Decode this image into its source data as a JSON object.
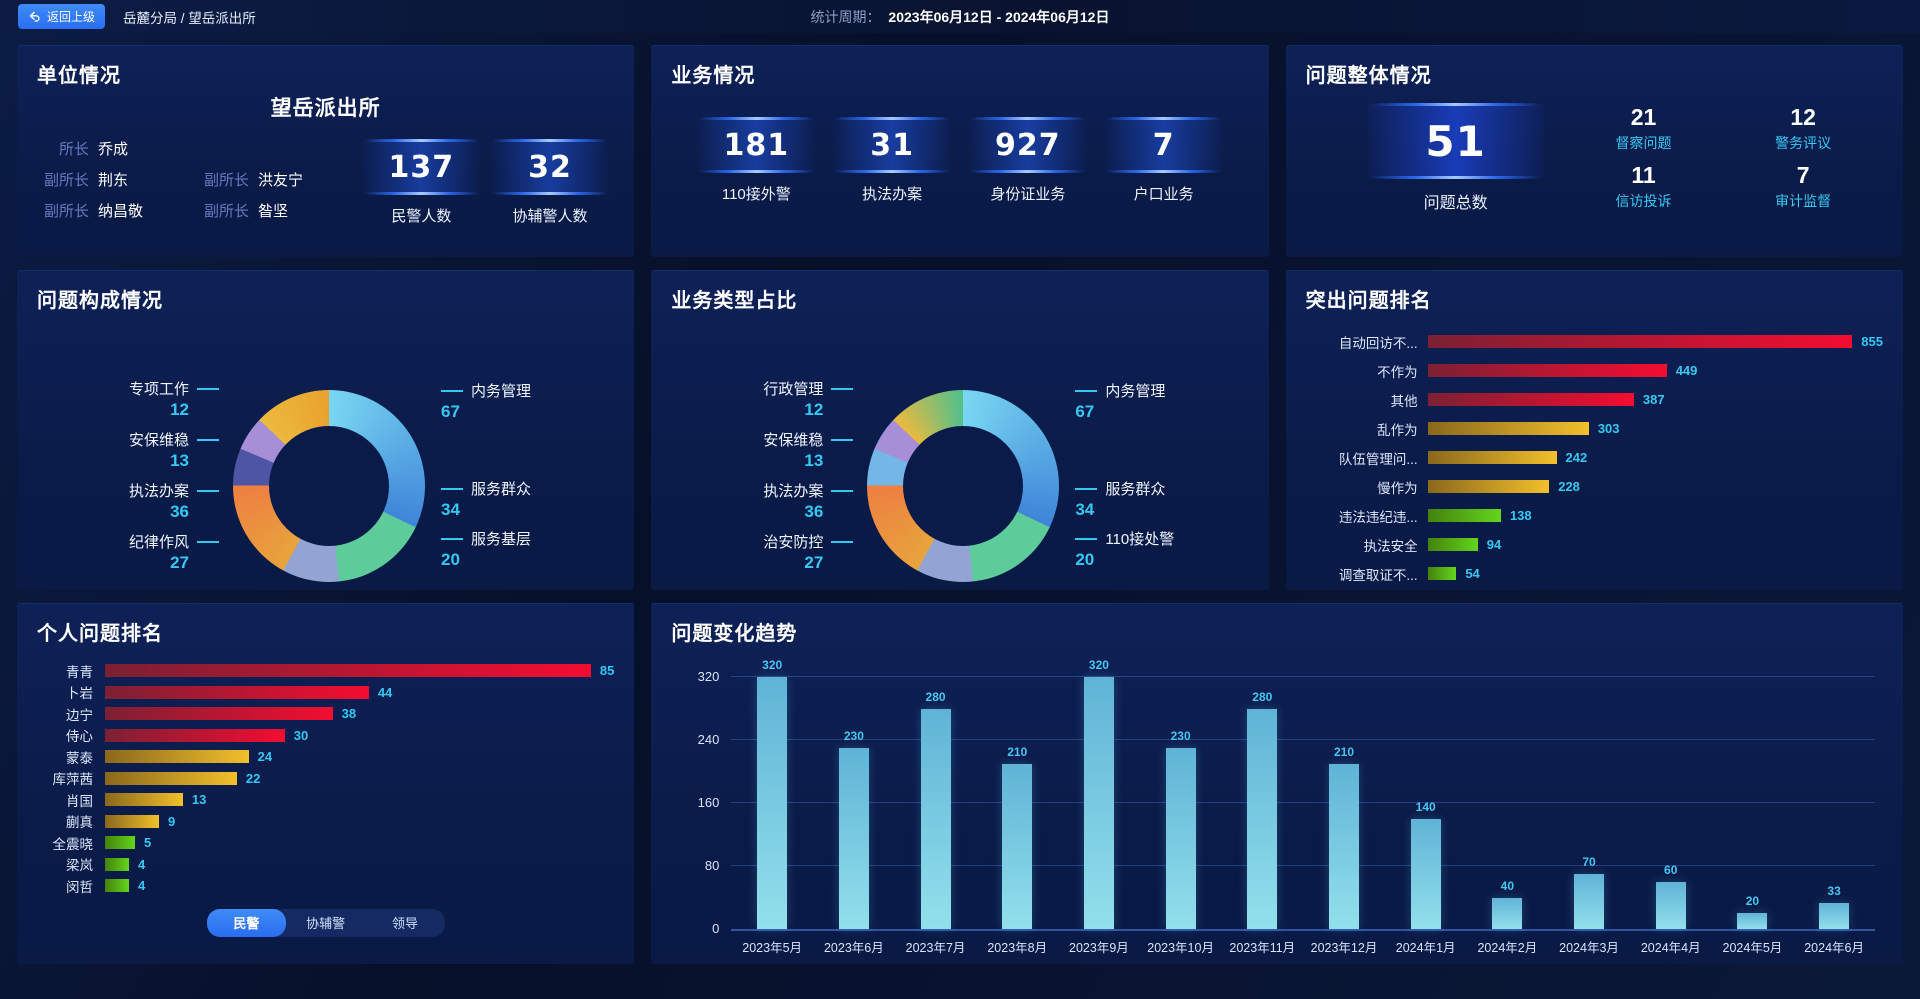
{
  "topbar": {
    "back_label": "返回上级",
    "breadcrumb": "岳麓分局 / 望岳派出所",
    "period_label": "统计周期：",
    "period_value": "2023年06月12日 - 2024年06月12日"
  },
  "palette": {
    "red": [
      "#7c2033",
      "#f30d31"
    ],
    "gold": [
      "#8a681c",
      "#f2c02b"
    ],
    "green": [
      "#44820d",
      "#63d51d"
    ],
    "trend_bar": [
      "#5fb3d6",
      "#93e0ec"
    ],
    "accent_cyan": "#35c9f1",
    "active_tab_blue": "#2e7ef7"
  },
  "unit_panel": {
    "title": "单位情况",
    "station_name": "望岳派出所",
    "roster_rows": [
      [
        {
          "role": "所长",
          "name": "乔成"
        },
        null
      ],
      [
        {
          "role": "副所长",
          "name": "荆东"
        },
        {
          "role": "副所长",
          "name": "洪友宁"
        }
      ],
      [
        {
          "role": "副所长",
          "name": "纳昌敬"
        },
        {
          "role": "副所长",
          "name": "昝坚"
        }
      ]
    ],
    "stats": [
      {
        "value": "137",
        "label": "民警人数"
      },
      {
        "value": "32",
        "label": "协辅警人数"
      }
    ]
  },
  "business_panel": {
    "title": "业务情况",
    "stats": [
      {
        "value": "181",
        "label": "110接外警"
      },
      {
        "value": "31",
        "label": "执法办案"
      },
      {
        "value": "927",
        "label": "身份证业务"
      },
      {
        "value": "7",
        "label": "户口业务"
      }
    ]
  },
  "issue_overview_panel": {
    "title": "问题整体情况",
    "total": {
      "value": "51",
      "label": "问题总数"
    },
    "stats": [
      {
        "value": "21",
        "label": "督察问题"
      },
      {
        "value": "12",
        "label": "警务评议"
      },
      {
        "value": "11",
        "label": "信访投诉"
      },
      {
        "value": "7",
        "label": "审计监督"
      }
    ]
  },
  "chart_data": [
    {
      "id": "issue_composition",
      "type": "pie",
      "title": "问题构成情况",
      "items": [
        {
          "name": "内务管理",
          "value": 67,
          "colors": [
            "#79d7f2",
            "#3f85d8"
          ]
        },
        {
          "name": "服务群众",
          "value": 34,
          "colors": [
            "#5ecb9b"
          ]
        },
        {
          "name": "服务基层",
          "value": 20,
          "colors": [
            "#93a3d4"
          ]
        },
        {
          "name": "执法办案",
          "value": 36,
          "colors": [
            "#e7a43c",
            "#ee7f41"
          ]
        },
        {
          "name": "安保维稳",
          "value": 13,
          "colors": [
            "#4d55a4"
          ]
        },
        {
          "name": "专项工作",
          "value": 12,
          "colors": [
            "#a78fd8"
          ]
        },
        {
          "name": "纪律作风",
          "value": 27,
          "colors": [
            "#ecb93e",
            "#e9a22e"
          ]
        }
      ],
      "left_label_idx": [
        5,
        4,
        3,
        6
      ],
      "right_label_idx": [
        0,
        1,
        2
      ]
    },
    {
      "id": "business_type",
      "type": "pie",
      "title": "业务类型占比",
      "items": [
        {
          "name": "内务管理",
          "value": 67,
          "colors": [
            "#79d7f2",
            "#3f85d8"
          ]
        },
        {
          "name": "服务群众",
          "value": 34,
          "colors": [
            "#5ecb9b"
          ]
        },
        {
          "name": "110接处警",
          "value": 20,
          "colors": [
            "#93a3d4"
          ]
        },
        {
          "name": "执法办案",
          "value": 36,
          "colors": [
            "#e7a43c",
            "#ee7f41"
          ]
        },
        {
          "name": "安保维稳",
          "value": 13,
          "colors": [
            "#74b6e8"
          ]
        },
        {
          "name": "行政管理",
          "value": 12,
          "colors": [
            "#a78fd8"
          ]
        },
        {
          "name": "治安防控",
          "value": 27,
          "colors": [
            "#ecb93e",
            "#4fc08d"
          ]
        }
      ],
      "left_label_idx": [
        5,
        4,
        3,
        6
      ],
      "right_label_idx": [
        0,
        1,
        2
      ]
    },
    {
      "id": "top_issues",
      "type": "bar",
      "orientation": "horizontal",
      "title": "突出问题排名",
      "categories": [
        "自动回访不...",
        "不作为",
        "其他",
        "乱作为",
        "队伍管理问...",
        "慢作为",
        "违法违纪违...",
        "执法安全",
        "调查取证不..."
      ],
      "values": [
        855,
        449,
        387,
        303,
        242,
        228,
        138,
        94,
        54
      ],
      "bar_colors": [
        "red",
        "red",
        "red",
        "gold",
        "gold",
        "gold",
        "green",
        "green",
        "green"
      ],
      "xmax": 855
    },
    {
      "id": "personal_ranking",
      "type": "bar",
      "orientation": "horizontal",
      "title": "个人问题排名",
      "categories": [
        "青青",
        "卜岩",
        "边宁",
        "侍心",
        "蒙泰",
        "库萍茜",
        "肖国",
        "蒯真",
        "全震晓",
        "梁岚",
        "闵哲"
      ],
      "values": [
        85,
        44,
        38,
        30,
        24,
        22,
        13,
        9,
        5,
        4,
        4
      ],
      "bar_colors": [
        "red",
        "red",
        "red",
        "red",
        "gold",
        "gold",
        "gold",
        "gold",
        "green",
        "green",
        "green"
      ],
      "xmax": 85,
      "tabs": [
        "民警",
        "协辅警",
        "领导"
      ],
      "active_tab": "民警"
    },
    {
      "id": "issue_trend",
      "type": "bar",
      "orientation": "vertical",
      "title": "问题变化趋势",
      "categories": [
        "2023年5月",
        "2023年6月",
        "2023年7月",
        "2023年8月",
        "2023年9月",
        "2023年10月",
        "2023年11月",
        "2023年12月",
        "2024年1月",
        "2024年2月",
        "2024年3月",
        "2024年4月",
        "2024年5月",
        "2024年6月"
      ],
      "values": [
        320,
        230,
        280,
        210,
        320,
        230,
        280,
        210,
        140,
        40,
        70,
        60,
        20,
        33
      ],
      "ylim": [
        0,
        320
      ],
      "yticks": [
        0,
        80,
        160,
        240,
        320
      ],
      "grid": true
    }
  ]
}
